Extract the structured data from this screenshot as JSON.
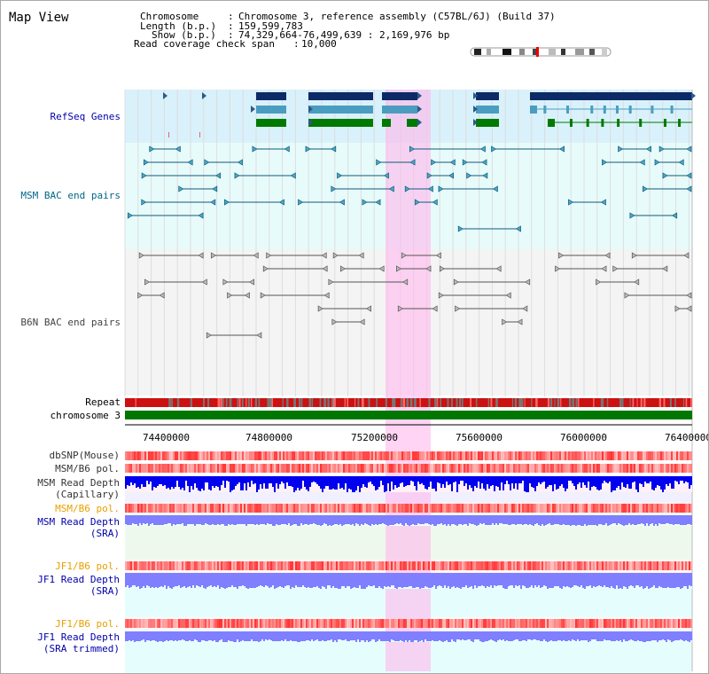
{
  "view": {
    "title": "Map View",
    "info": [
      {
        "key": "Chromosome",
        "value": "Chromosome 3, reference assembly (C57BL/6J) (Build 37)"
      },
      {
        "key": "Length (b.p.)",
        "value": "159,599,783"
      },
      {
        "key": "Show (b.p.)",
        "value": "74,329,664-76,499,639 : 2,169,976 bp"
      },
      {
        "key": "Read coverage check span",
        "value": "10,000"
      }
    ]
  },
  "tracks": {
    "refseq": {
      "label": "RefSeq Genes",
      "color": "#0000aa",
      "bg": "#d9f1fb"
    },
    "msm_bac": {
      "label": "MSM BAC end pairs",
      "color": "#006688",
      "bg": "#e8fbfb"
    },
    "b6n_bac": {
      "label": "B6N BAC end pairs",
      "color": "#444444",
      "bg": "#f4f4f4"
    },
    "repeat": {
      "label": "Repeat"
    },
    "chromosome": {
      "label": "chromosome 3"
    }
  },
  "axis": {
    "ticks": [
      "74400000",
      "74800000",
      "75200000",
      "75600000",
      "76000000",
      "76400000"
    ]
  },
  "lower_tracks": [
    {
      "label": "dbSNP(Mouse)",
      "color": "#333333"
    },
    {
      "label": "MSM/B6 pol.",
      "color": "#333333"
    },
    {
      "label": "MSM Read Depth",
      "color": "#333333"
    },
    {
      "label": "(Capillary)",
      "color": "#333333"
    },
    {
      "label": "MSM/B6 pol.",
      "color": "#e8a000"
    },
    {
      "label": "MSM Read Depth",
      "color": "#0000aa"
    },
    {
      "label": "(SRA)",
      "color": "#0000aa"
    },
    {
      "label": "JF1/B6 pol.",
      "color": "#e8a000"
    },
    {
      "label": "JF1 Read Depth",
      "color": "#0000aa"
    },
    {
      "label": "(SRA)",
      "color": "#0000aa"
    },
    {
      "label": "JF1/B6 pol.",
      "color": "#e8a000"
    },
    {
      "label": "JF1 Read Depth",
      "color": "#0000aa"
    },
    {
      "label": "(SRA trimmed)",
      "color": "#0000aa"
    }
  ],
  "colors": {
    "highlight": "#ffb8ec",
    "gene_navy": "#0b2a66",
    "gene_blue": "#4a9dbf",
    "gene_green": "#007a00",
    "chromosome_bar": "#007700",
    "depth_capillary": "#0000ee",
    "depth_sra": "#7f7fff",
    "pol": "#ff3333"
  }
}
